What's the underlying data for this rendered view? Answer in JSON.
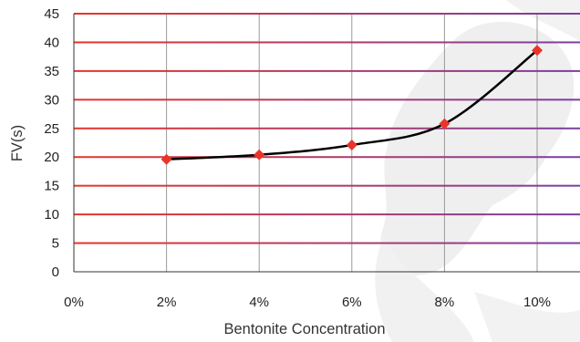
{
  "chart_data": {
    "type": "scatter",
    "xlabel": "Bentonite Concentration",
    "ylabel": "FV(s)",
    "x_ticks": [
      "0%",
      "2%",
      "4%",
      "6%",
      "8%",
      "10%"
    ],
    "y_ticks": [
      "0",
      "5",
      "10",
      "15",
      "20",
      "25",
      "30",
      "35",
      "40",
      "45"
    ],
    "xlim": [
      0,
      11
    ],
    "ylim": [
      0,
      45
    ],
    "grid": true,
    "trendline": "smooth curve",
    "series": [
      {
        "x": [
          2,
          4,
          6,
          8,
          10
        ],
        "y": [
          19.6,
          20.4,
          22.1,
          25.8,
          38.6
        ]
      }
    ],
    "colors": {
      "marker": "#e8352a",
      "curve": "#000000",
      "hgrid_start": "#e8352a",
      "hgrid_end": "#7b3fa1",
      "vgrid": "#9a9a9a",
      "watermark": "#ededed"
    }
  }
}
